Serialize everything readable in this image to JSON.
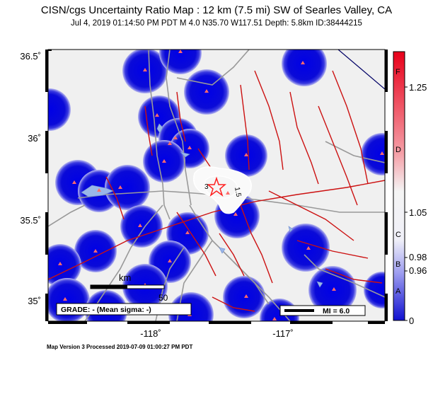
{
  "title": "CISN/cgs Uncertainty Ratio Map : 12 km (7.5 mi) SW of Searles Valley, CA",
  "subtitle": "Jul  4, 2019 01:14:50 PM PDT    M 4.0    N35.70 W117.51    Depth: 5.8km    ID:38444215",
  "y_axis_labels": [
    "36.5˚",
    "36˚",
    "35.5˚",
    "35˚"
  ],
  "x_axis_labels": [
    "-118˚",
    "-117˚"
  ],
  "scale_bar": {
    "unit": "km",
    "value": "50"
  },
  "grade_box": "GRADE: - (Mean sigma: -)",
  "mi_legend": "MI = 6.0",
  "contour_labels": [
    "3",
    "1.5"
  ],
  "colorbar": {
    "letters": [
      "F",
      "D",
      "C",
      "B",
      "A"
    ],
    "values": [
      "1.25",
      "1.05",
      "0.98",
      "0.96",
      "0"
    ],
    "colors": {
      "top": "#e8001a",
      "mid": "#f4f4f4",
      "bottom": "#1010d0"
    }
  },
  "footer": "Map Version 3 Processed 2019-07-09 01:00:27 PM PDT",
  "colors": {
    "station_blob": "#0a0ad8",
    "station": "#ff6a6a",
    "fault": "#cc1111",
    "road": "#999999",
    "background": "#f0f0f0",
    "epicenter": "#ff2020"
  }
}
